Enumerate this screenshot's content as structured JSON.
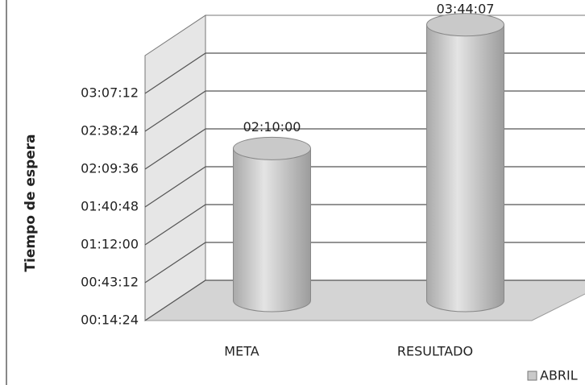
{
  "chart_data": {
    "type": "bar3d",
    "y_label": "Tiempo de espera",
    "categories": [
      "META",
      "RESULTADO"
    ],
    "series": [
      {
        "name": "ABRIL",
        "color": "#c9c9c9",
        "values": [
          7800,
          13447
        ],
        "value_labels": [
          "02:10:00",
          "03:44:07"
        ]
      }
    ],
    "ylim": [
      864,
      12960
    ],
    "yticks": [
      {
        "value": 864,
        "label": "00:14:24"
      },
      {
        "value": 2592,
        "label": "00:43:12"
      },
      {
        "value": 4320,
        "label": "01:12:00"
      },
      {
        "value": 6048,
        "label": "01:40:48"
      },
      {
        "value": 7776,
        "label": "02:09:36"
      },
      {
        "value": 9504,
        "label": "02:38:24"
      },
      {
        "value": 11232,
        "label": "03:07:12"
      }
    ],
    "grid": true
  }
}
